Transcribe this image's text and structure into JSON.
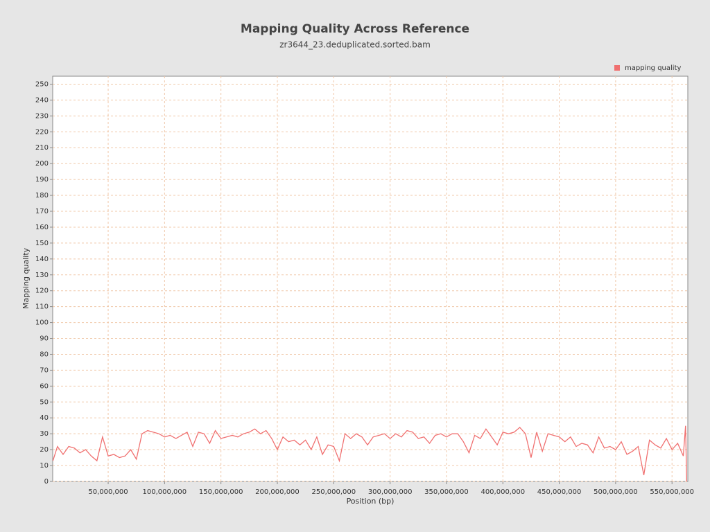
{
  "chart_data": {
    "type": "line",
    "title": "Mapping Quality Across Reference",
    "subtitle": "zr3644_23.deduplicated.sorted.bam",
    "xlabel": "Position (bp)",
    "ylabel": "Mapping quality",
    "legend": "top-right",
    "grid": true,
    "x": [
      1000000,
      5000000,
      10000000,
      15000000,
      20000000,
      25000000,
      30000000,
      35000000,
      40000000,
      45000000,
      50000000,
      55000000,
      60000000,
      65000000,
      70000000,
      75000000,
      80000000,
      85000000,
      90000000,
      95000000,
      100000000,
      105000000,
      110000000,
      115000000,
      120000000,
      125000000,
      130000000,
      135000000,
      140000000,
      145000000,
      150000000,
      155000000,
      160000000,
      165000000,
      170000000,
      175000000,
      180000000,
      185000000,
      190000000,
      195000000,
      200000000,
      205000000,
      210000000,
      215000000,
      220000000,
      225000000,
      230000000,
      235000000,
      240000000,
      245000000,
      250000000,
      255000000,
      260000000,
      265000000,
      270000000,
      275000000,
      280000000,
      285000000,
      290000000,
      295000000,
      300000000,
      305000000,
      310000000,
      315000000,
      320000000,
      325000000,
      330000000,
      335000000,
      340000000,
      345000000,
      350000000,
      355000000,
      360000000,
      365000000,
      370000000,
      375000000,
      380000000,
      385000000,
      390000000,
      395000000,
      400000000,
      405000000,
      410000000,
      415000000,
      420000000,
      425000000,
      430000000,
      435000000,
      440000000,
      445000000,
      450000000,
      455000000,
      460000000,
      465000000,
      470000000,
      475000000,
      480000000,
      485000000,
      490000000,
      495000000,
      500000000,
      505000000,
      510000000,
      515000000,
      520000000,
      525000000,
      530000000,
      535000000,
      540000000,
      545000000,
      550000000,
      555000000,
      560000000,
      562000000,
      563000000
    ],
    "series": [
      {
        "name": "mapping quality",
        "color": "#f07070",
        "values": [
          13,
          22,
          17,
          22,
          21,
          18,
          20,
          16,
          13,
          28,
          16,
          17,
          15,
          16,
          20,
          14,
          30,
          32,
          31,
          30,
          28,
          29,
          27,
          29,
          31,
          22,
          31,
          30,
          24,
          32,
          27,
          28,
          29,
          28,
          30,
          31,
          33,
          30,
          32,
          27,
          20,
          28,
          25,
          26,
          23,
          26,
          20,
          28,
          17,
          23,
          22,
          13,
          30,
          27,
          30,
          28,
          23,
          28,
          29,
          30,
          27,
          30,
          28,
          32,
          31,
          27,
          28,
          24,
          29,
          30,
          28,
          30,
          30,
          25,
          18,
          29,
          27,
          33,
          28,
          23,
          31,
          30,
          31,
          34,
          30,
          15,
          31,
          19,
          30,
          29,
          28,
          25,
          28,
          22,
          24,
          23,
          18,
          28,
          21,
          22,
          20,
          25,
          17,
          19,
          22,
          4,
          26,
          23,
          21,
          27,
          20,
          24,
          16,
          35,
          0
        ]
      }
    ],
    "xlim": [
      800000,
      564000000
    ],
    "xticks": [
      {
        "value": 50000000,
        "label": "50,000,000"
      },
      {
        "value": 100000000,
        "label": "100,000,000"
      },
      {
        "value": 150000000,
        "label": "150,000,000"
      },
      {
        "value": 200000000,
        "label": "200,000,000"
      },
      {
        "value": 250000000,
        "label": "250,000,000"
      },
      {
        "value": 300000000,
        "label": "300,000,000"
      },
      {
        "value": 350000000,
        "label": "350,000,000"
      },
      {
        "value": 400000000,
        "label": "400,000,000"
      },
      {
        "value": 450000000,
        "label": "450,000,000"
      },
      {
        "value": 500000000,
        "label": "500,000,000"
      },
      {
        "value": 550000000,
        "label": "550,000,000"
      }
    ],
    "ylim": [
      0,
      255
    ],
    "yticks": [
      0,
      10,
      20,
      30,
      40,
      50,
      60,
      70,
      80,
      90,
      100,
      110,
      120,
      130,
      140,
      150,
      160,
      170,
      180,
      190,
      200,
      210,
      220,
      230,
      240,
      250
    ]
  }
}
